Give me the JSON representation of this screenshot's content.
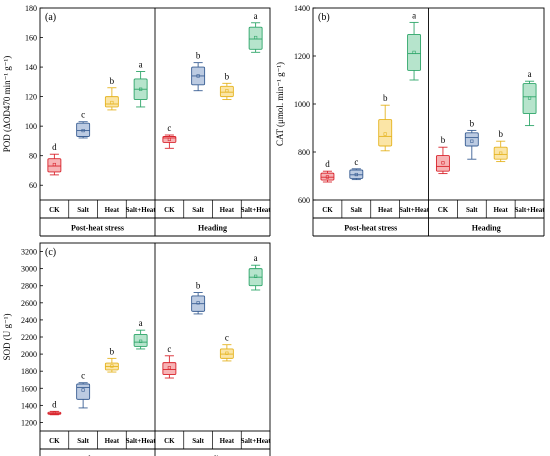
{
  "colors": {
    "CK": {
      "fill": "#f7b3b5",
      "stroke": "#d9262e"
    },
    "Salt": {
      "fill": "#bccbe2",
      "stroke": "#3a5f94"
    },
    "Heat": {
      "fill": "#fbe5a6",
      "stroke": "#e5b422"
    },
    "Salt+Heat": {
      "fill": "#b6e4cc",
      "stroke": "#2fa66a"
    }
  },
  "chart_data": [
    {
      "type": "box",
      "panel_label": "(a)",
      "ylabel": "POD (ΔOD470  min⁻¹ g⁻¹)",
      "ylim": [
        50,
        180
      ],
      "yticks": [
        60,
        80,
        100,
        120,
        140,
        160,
        180
      ],
      "categories": [
        "CK",
        "Salt",
        "Heat",
        "Salt+Heat"
      ],
      "groups": [
        "Post-heat stress",
        "Heading"
      ],
      "grid": false,
      "boxes": [
        {
          "group": "Post-heat stress",
          "category": "CK",
          "min": 67,
          "q1": 69,
          "median": 73,
          "q3": 78,
          "max": 81,
          "mean": 74,
          "letter": "d"
        },
        {
          "group": "Post-heat stress",
          "category": "Salt",
          "min": 92,
          "q1": 93,
          "median": 97,
          "q3": 102,
          "max": 103,
          "mean": 97,
          "letter": "c"
        },
        {
          "group": "Post-heat stress",
          "category": "Heat",
          "min": 111,
          "q1": 113,
          "median": 115,
          "q3": 120,
          "max": 126,
          "mean": 116,
          "letter": "b"
        },
        {
          "group": "Post-heat stress",
          "category": "Salt+Heat",
          "min": 113,
          "q1": 118,
          "median": 125,
          "q3": 132,
          "max": 137,
          "mean": 125,
          "letter": "a"
        },
        {
          "group": "Heading",
          "category": "CK",
          "min": 85,
          "q1": 89,
          "median": 92,
          "q3": 93,
          "max": 94,
          "mean": 91,
          "letter": "c"
        },
        {
          "group": "Heading",
          "category": "Salt",
          "min": 124,
          "q1": 128,
          "median": 134,
          "q3": 140,
          "max": 143,
          "mean": 134,
          "letter": "b"
        },
        {
          "group": "Heading",
          "category": "Heat",
          "min": 118,
          "q1": 120,
          "median": 123,
          "q3": 127,
          "max": 129,
          "mean": 124,
          "letter": "b"
        },
        {
          "group": "Heading",
          "category": "Salt+Heat",
          "min": 150,
          "q1": 152,
          "median": 159,
          "q3": 167,
          "max": 170,
          "mean": 160,
          "letter": "a"
        }
      ]
    },
    {
      "type": "box",
      "panel_label": "(b)",
      "ylabel": "CAT (μmol. min⁻¹ g⁻¹)",
      "ylim": [
        600,
        1400
      ],
      "yticks": [
        600,
        800,
        1000,
        1200,
        1400
      ],
      "categories": [
        "CK",
        "Salt",
        "Heat",
        "Salt+Heat"
      ],
      "groups": [
        "Post-heat stress",
        "Heading"
      ],
      "grid": false,
      "boxes": [
        {
          "group": "Post-heat stress",
          "category": "CK",
          "min": 675,
          "q1": 683,
          "median": 695,
          "q3": 712,
          "max": 720,
          "mean": 696,
          "letter": "d"
        },
        {
          "group": "Post-heat stress",
          "category": "Salt",
          "min": 685,
          "q1": 690,
          "median": 705,
          "q3": 725,
          "max": 730,
          "mean": 706,
          "letter": "c"
        },
        {
          "group": "Post-heat stress",
          "category": "Heat",
          "min": 805,
          "q1": 825,
          "median": 865,
          "q3": 935,
          "max": 995,
          "mean": 875,
          "letter": "b"
        },
        {
          "group": "Post-heat stress",
          "category": "Salt+Heat",
          "min": 1100,
          "q1": 1140,
          "median": 1210,
          "q3": 1290,
          "max": 1340,
          "mean": 1215,
          "letter": "a"
        },
        {
          "group": "Heading",
          "category": "CK",
          "min": 710,
          "q1": 720,
          "median": 740,
          "q3": 785,
          "max": 820,
          "mean": 755,
          "letter": "b"
        },
        {
          "group": "Heading",
          "category": "Salt",
          "min": 770,
          "q1": 825,
          "median": 860,
          "q3": 880,
          "max": 890,
          "mean": 845,
          "letter": "b"
        },
        {
          "group": "Heading",
          "category": "Heat",
          "min": 760,
          "q1": 770,
          "median": 790,
          "q3": 820,
          "max": 845,
          "mean": 795,
          "letter": "b"
        },
        {
          "group": "Heading",
          "category": "Salt+Heat",
          "min": 910,
          "q1": 960,
          "median": 1030,
          "q3": 1085,
          "max": 1095,
          "mean": 1025,
          "letter": "a"
        }
      ]
    },
    {
      "type": "box",
      "panel_label": "(c)",
      "ylabel": "SOD (U g⁻¹)",
      "ylim": [
        1100,
        3300
      ],
      "yticks": [
        1200,
        1400,
        1600,
        1800,
        2000,
        2200,
        2400,
        2600,
        2800,
        3000,
        3200
      ],
      "categories": [
        "CK",
        "Salt",
        "Heat",
        "Salt+Heat"
      ],
      "groups": [
        "Post-heat stress",
        "Heading"
      ],
      "grid": false,
      "boxes": [
        {
          "group": "Post-heat stress",
          "category": "CK",
          "min": 1290,
          "q1": 1295,
          "median": 1305,
          "q3": 1320,
          "max": 1330,
          "mean": 1308,
          "letter": "d"
        },
        {
          "group": "Post-heat stress",
          "category": "Salt",
          "min": 1370,
          "q1": 1470,
          "median": 1610,
          "q3": 1650,
          "max": 1665,
          "mean": 1580,
          "letter": "c"
        },
        {
          "group": "Post-heat stress",
          "category": "Heat",
          "min": 1790,
          "q1": 1815,
          "median": 1855,
          "q3": 1895,
          "max": 1950,
          "mean": 1860,
          "letter": "b"
        },
        {
          "group": "Post-heat stress",
          "category": "Salt+Heat",
          "min": 2060,
          "q1": 2090,
          "median": 2140,
          "q3": 2230,
          "max": 2280,
          "mean": 2150,
          "letter": "a"
        },
        {
          "group": "Heading",
          "category": "CK",
          "min": 1720,
          "q1": 1760,
          "median": 1820,
          "q3": 1900,
          "max": 1980,
          "mean": 1840,
          "letter": "c"
        },
        {
          "group": "Heading",
          "category": "Salt",
          "min": 2470,
          "q1": 2500,
          "median": 2590,
          "q3": 2680,
          "max": 2720,
          "mean": 2600,
          "letter": "b"
        },
        {
          "group": "Heading",
          "category": "Heat",
          "min": 1920,
          "q1": 1950,
          "median": 2000,
          "q3": 2060,
          "max": 2110,
          "mean": 2010,
          "letter": "c"
        },
        {
          "group": "Heading",
          "category": "Salt+Heat",
          "min": 2750,
          "q1": 2800,
          "median": 2900,
          "q3": 3000,
          "max": 3040,
          "mean": 2910,
          "letter": "a"
        }
      ]
    }
  ]
}
